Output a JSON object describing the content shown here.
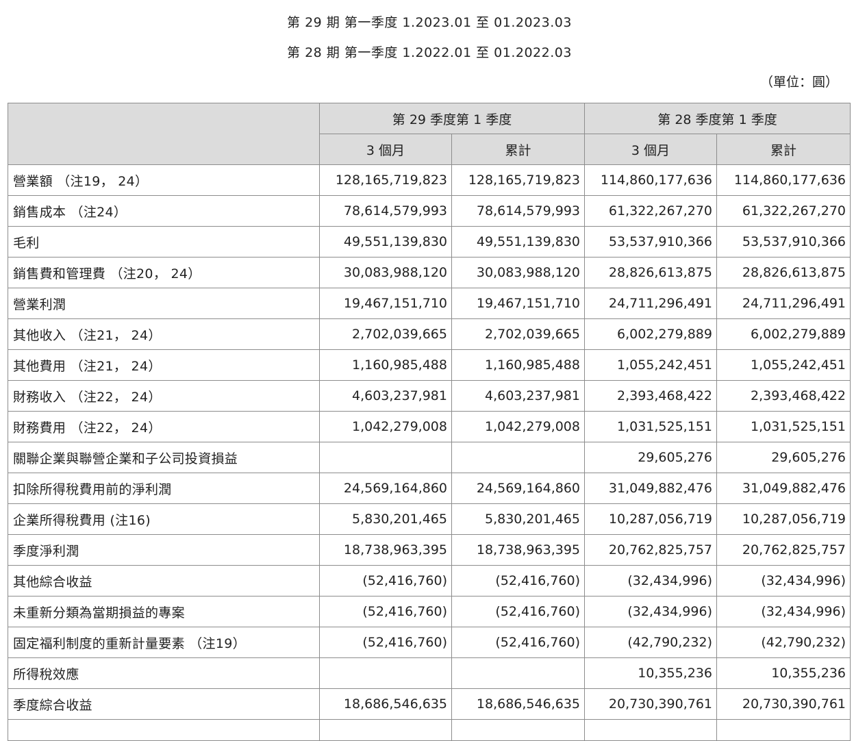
{
  "header": {
    "line1": "第 29 期 第一季度 1.2023.01 至 01.2023.03",
    "line2": "第 28 期 第一季度 1.2022.01 至 01.2022.03",
    "unit": "（單位：圓）"
  },
  "table": {
    "group_headers": [
      "第 29 季度第 1 季度",
      "第 28 季度第 1 季度"
    ],
    "sub_headers": [
      "3 個月",
      "累計",
      "3 個月",
      "累計"
    ],
    "rows": [
      {
        "label": "營業額 （注19， 24）",
        "values": [
          "128,165,719,823",
          "128,165,719,823",
          "114,860,177,636",
          "114,860,177,636"
        ]
      },
      {
        "label": "銷售成本 （注24）",
        "values": [
          "78,614,579,993",
          "78,614,579,993",
          "61,322,267,270",
          "61,322,267,270"
        ]
      },
      {
        "label": "毛利",
        "values": [
          "49,551,139,830",
          "49,551,139,830",
          "53,537,910,366",
          "53,537,910,366"
        ]
      },
      {
        "label": "銷售費和管理費 （注20， 24）",
        "values": [
          "30,083,988,120",
          "30,083,988,120",
          "28,826,613,875",
          "28,826,613,875"
        ]
      },
      {
        "label": "營業利潤",
        "values": [
          "19,467,151,710",
          "19,467,151,710",
          "24,711,296,491",
          "24,711,296,491"
        ]
      },
      {
        "label": "其他收入 （注21， 24）",
        "values": [
          "2,702,039,665",
          "2,702,039,665",
          "6,002,279,889",
          "6,002,279,889"
        ]
      },
      {
        "label": "其他費用 （注21， 24）",
        "values": [
          "1,160,985,488",
          "1,160,985,488",
          "1,055,242,451",
          "1,055,242,451"
        ]
      },
      {
        "label": "財務收入 （注22， 24）",
        "values": [
          "4,603,237,981",
          "4,603,237,981",
          "2,393,468,422",
          "2,393,468,422"
        ]
      },
      {
        "label": "財務費用 （注22， 24）",
        "values": [
          "1,042,279,008",
          "1,042,279,008",
          "1,031,525,151",
          "1,031,525,151"
        ]
      },
      {
        "label": "關聯企業與聯營企業和子公司投資損益",
        "values": [
          "",
          "",
          "29,605,276",
          "29,605,276"
        ]
      },
      {
        "label": "扣除所得稅費用前的淨利潤",
        "values": [
          "24,569,164,860",
          "24,569,164,860",
          "31,049,882,476",
          "31,049,882,476"
        ]
      },
      {
        "label": "企業所得稅費用 (注16)",
        "values": [
          "5,830,201,465",
          "5,830,201,465",
          "10,287,056,719",
          "10,287,056,719"
        ]
      },
      {
        "label": "季度淨利潤",
        "values": [
          "18,738,963,395",
          "18,738,963,395",
          "20,762,825,757",
          "20,762,825,757"
        ]
      },
      {
        "label": "其他綜合收益",
        "values": [
          "(52,416,760)",
          "(52,416,760)",
          "(32,434,996)",
          "(32,434,996)"
        ]
      },
      {
        "label": "未重新分類為當期損益的專案",
        "values": [
          "(52,416,760)",
          "(52,416,760)",
          "(32,434,996)",
          "(32,434,996)"
        ]
      },
      {
        "label": "固定福利制度的重新計量要素 （注19）",
        "values": [
          "(52,416,760)",
          "(52,416,760)",
          "(42,790,232)",
          "(42,790,232)"
        ]
      },
      {
        "label": "所得稅效應",
        "values": [
          "",
          "",
          "10,355,236",
          "10,355,236"
        ]
      },
      {
        "label": "季度綜合收益",
        "values": [
          "18,686,546,635",
          "18,686,546,635",
          "20,730,390,761",
          "20,730,390,761"
        ]
      }
    ]
  }
}
